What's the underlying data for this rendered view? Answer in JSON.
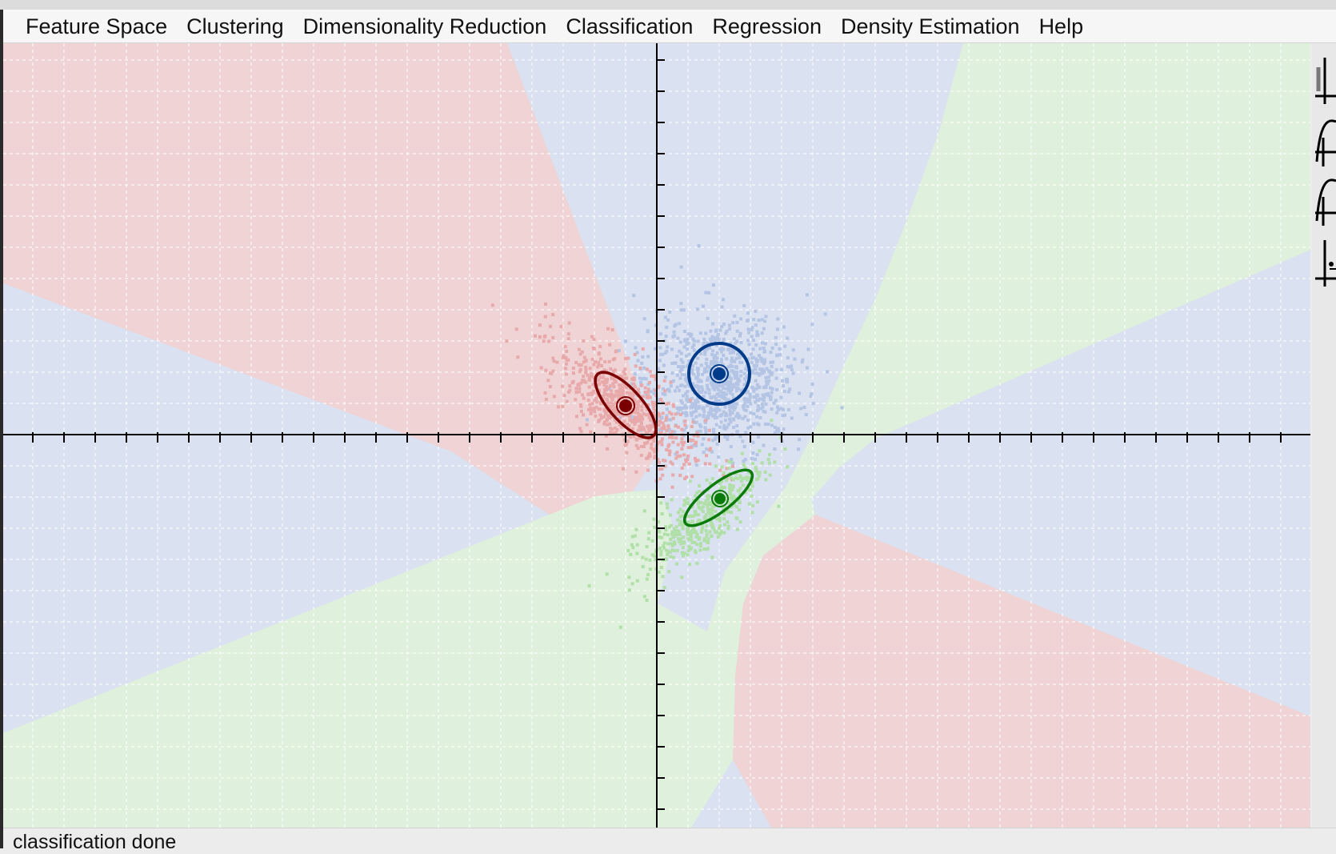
{
  "menubar": {
    "items": [
      {
        "label": "Feature Space"
      },
      {
        "label": "Clustering"
      },
      {
        "label": "Dimensionality Reduction"
      },
      {
        "label": "Classification"
      },
      {
        "label": "Regression"
      },
      {
        "label": "Density Estimation"
      },
      {
        "label": "Help"
      }
    ]
  },
  "canvas": {
    "colors": {
      "red_region": "#efd3d5",
      "blue_region": "#dae1f0",
      "green_region": "#dff1dc",
      "red_samples": "#e8a9aa",
      "blue_samples": "#b3c4e4",
      "green_samples": "#b0dfa7",
      "red_model": "#7a0000",
      "blue_model": "#003b8a",
      "green_model": "#0a7a0a",
      "grid": "#ffffff",
      "axis": "#000000"
    },
    "classes": [
      {
        "class": "red",
        "center": [
          -0.5,
          1.0
        ],
        "covariance_angle_deg": 55
      },
      {
        "class": "blue",
        "center": [
          2.0,
          2.0
        ],
        "covariance_angle_deg": 0
      },
      {
        "class": "green",
        "center": [
          2.0,
          -2.0
        ],
        "covariance_angle_deg": -35
      }
    ]
  },
  "sidebar": {
    "tools": [
      {
        "icon": "axis-tool-icon"
      },
      {
        "icon": "curve-tool-icon"
      },
      {
        "icon": "curve-tool-2-icon"
      },
      {
        "icon": "point-tool-icon"
      }
    ]
  },
  "status": {
    "text": "classification done"
  }
}
